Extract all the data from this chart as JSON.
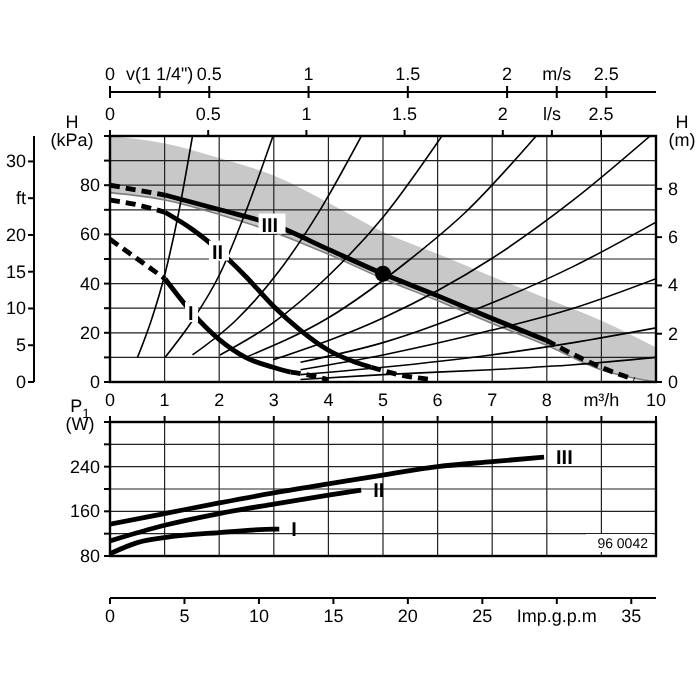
{
  "chart_data": [
    {
      "type": "line",
      "ylabel": "H (kPa)",
      "y2label": "H (m)",
      "xlim": [
        0,
        2.78
      ],
      "xticks": [
        0,
        0.5,
        1,
        1.5,
        2,
        {
          "value": 2.25,
          "label": "l/s"
        },
        2.5
      ],
      "ylim": [
        0,
        100
      ],
      "yticks": [
        0,
        {
          "value": 10,
          "label": null
        },
        20,
        {
          "value": 30,
          "label": null
        },
        40,
        {
          "value": 50,
          "label": null
        },
        60,
        {
          "value": 70,
          "label": null
        },
        80,
        {
          "value": 90,
          "label": null
        },
        {
          "value": 100,
          "label": null
        }
      ],
      "y2lim": [
        0,
        10.19
      ],
      "y2ticks": [
        0,
        2,
        4,
        6,
        8
      ],
      "y3lim": [
        0,
        33.46
      ],
      "y3ticks": [
        0,
        5,
        10,
        15,
        20,
        {
          "value": 25,
          "label": "ft"
        },
        30
      ],
      "x2lim": [
        0,
        2.75
      ],
      "x2ticks": [
        0,
        {
          "value": 0.25,
          "label": "v(1 1/4\")"
        },
        0.5,
        1,
        1.5,
        2,
        {
          "value": 2.25,
          "label": "m/s"
        },
        2.5
      ],
      "grid": true,
      "series": [
        {
          "color": "#808080",
          "x": [
            0,
            0.28,
            0.56,
            0.83,
            1.11,
            1.39,
            1.67,
            1.94,
            2.22,
            2.5,
            2.78
          ],
          "values": [
            77,
            74,
            68,
            61,
            52,
            42,
            33,
            24,
            15,
            5,
            0
          ],
          "lower": [
            77,
            74,
            68,
            61,
            52,
            42,
            33,
            24,
            15,
            5,
            0
          ],
          "upper": [
            100,
            97,
            91,
            84,
            73,
            61,
            52,
            43,
            34,
            25,
            14
          ]
        },
        {
          "color": "#000000",
          "x": [
            0.14,
            0.21,
            0.28,
            0.35,
            0.42
          ],
          "values": [
            10,
            25,
            44,
            69,
            100
          ]
        },
        {
          "color": "#000000",
          "x": [
            0.28,
            0.42,
            0.56,
            0.69,
            0.83
          ],
          "values": [
            10,
            25,
            44,
            69,
            100
          ]
        },
        {
          "color": "#000000",
          "x": [
            0.42,
            0.64,
            0.86,
            1.07,
            1.28
          ],
          "values": [
            11,
            25,
            45,
            70,
            100
          ]
        },
        {
          "color": "#000000",
          "x": [
            0.56,
            0.83,
            1.11,
            1.39,
            1.69
          ],
          "values": [
            11,
            24,
            43,
            67,
            100
          ]
        },
        {
          "color": "#000000",
          "x": [
            0.69,
            1.11,
            1.53,
            1.81,
            2.17
          ],
          "values": [
            10,
            26,
            50,
            69,
            100
          ]
        },
        {
          "color": "#000000",
          "x": [
            0.83,
            1.39,
            1.94,
            2.36,
            2.75
          ],
          "values": [
            9,
            26,
            50,
            74,
            100
          ]
        },
        {
          "color": "#000000",
          "x": [
            0.97,
            1.39,
            1.94,
            2.36,
            2.78
          ],
          "values": [
            8,
            16,
            32,
            47,
            65
          ]
        },
        {
          "color": "#000000",
          "x": [
            0.97,
            1.39,
            1.94,
            2.36,
            2.78
          ],
          "values": [
            5,
            11,
            21,
            30,
            42
          ]
        },
        {
          "color": "#000000",
          "x": [
            0.97,
            1.39,
            1.94,
            2.36,
            2.78
          ],
          "values": [
            3,
            6,
            11,
            16,
            22
          ]
        },
        {
          "color": "#000000",
          "x": [
            0.97,
            1.39,
            1.94,
            2.36,
            2.78
          ],
          "values": [
            1,
            3,
            5,
            7,
            10
          ]
        },
        {
          "color": "#000000",
          "line_style": "dashed",
          "x": [
            0,
            0.14,
            0.28
          ],
          "values": [
            80,
            78,
            76
          ]
        },
        {
          "name": "III",
          "color": "#000000",
          "line_style": "solid",
          "x": [
            0.28,
            0.56,
            0.83,
            1.11,
            1.39,
            1.67,
            1.94,
            2.22
          ],
          "values": [
            76,
            70,
            64,
            54,
            44,
            35,
            26,
            17
          ]
        },
        {
          "color": "#000000",
          "line_style": "dashed",
          "x": [
            2.22,
            2.5,
            2.67
          ],
          "values": [
            17,
            6,
            1
          ]
        },
        {
          "color": "#000000",
          "line_style": "dashed",
          "x": [
            0,
            0.14,
            0.28
          ],
          "values": [
            74,
            72,
            69
          ]
        },
        {
          "name": "II",
          "color": "#000000",
          "line_style": "solid",
          "x": [
            0.28,
            0.42,
            0.56,
            0.69,
            0.83,
            0.97,
            1.11,
            1.25,
            1.33
          ],
          "values": [
            69,
            62,
            53,
            43,
            31,
            21,
            13,
            8,
            6
          ]
        },
        {
          "color": "#000000",
          "line_style": "dashed",
          "x": [
            1.33,
            1.47,
            1.64
          ],
          "values": [
            6,
            3,
            1
          ]
        },
        {
          "color": "#000000",
          "line_style": "dashed",
          "x": [
            0,
            0.14,
            0.28
          ],
          "values": [
            58,
            50,
            42
          ]
        },
        {
          "name": "I",
          "color": "#000000",
          "line_style": "solid",
          "x": [
            0.28,
            0.42,
            0.56,
            0.69,
            0.83,
            0.92
          ],
          "values": [
            42,
            28,
            17,
            10,
            6,
            4
          ]
        },
        {
          "color": "#000000",
          "line_style": "dashed",
          "x": [
            0.92,
            1,
            1.11
          ],
          "values": [
            4,
            3,
            1
          ]
        },
        {
          "type": "scatter",
          "marker": "circle",
          "color": "#000000",
          "x": [
            1.39
          ],
          "values": [
            44
          ]
        }
      ]
    },
    {
      "type": "line",
      "ylabel": "P$_{1}$ (W)",
      "xlim": [
        0,
        10
      ],
      "xticks": [
        0,
        1,
        2,
        3,
        4,
        5,
        6,
        7,
        8,
        {
          "value": 9,
          "label": "m³/h"
        },
        10
      ],
      "ylim": [
        80,
        320
      ],
      "yticks": [
        80,
        {
          "value": 120,
          "label": null
        },
        160,
        {
          "value": 200,
          "label": null
        },
        240,
        {
          "value": 280,
          "label": null
        },
        {
          "value": 320,
          "label": null
        }
      ],
      "x2lim": [
        0,
        36.66
      ],
      "x2ticks": [
        0,
        5,
        10,
        15,
        20,
        25,
        {
          "value": 30,
          "label": "Imp.g.p.m"
        },
        35
      ],
      "grid": true,
      "annotations": [
        "96 0042"
      ],
      "series": [
        {
          "name": "III",
          "color": "#000000",
          "line_style": "solid",
          "x": [
            0,
            1,
            2,
            3,
            4,
            5,
            6,
            7,
            7.95
          ],
          "values": [
            137,
            156,
            175,
            193,
            209,
            225,
            240,
            249,
            257
          ]
        },
        {
          "name": "II",
          "color": "#000000",
          "line_style": "solid",
          "x": [
            0,
            1,
            2,
            3,
            4,
            4.6
          ],
          "values": [
            107,
            135,
            156,
            173,
            189,
            198
          ]
        },
        {
          "name": "I",
          "color": "#000000",
          "line_style": "solid",
          "x": [
            0,
            0.5,
            1,
            2,
            3,
            3.1
          ],
          "values": [
            84,
            104,
            113,
            122,
            128,
            128
          ]
        }
      ]
    }
  ]
}
